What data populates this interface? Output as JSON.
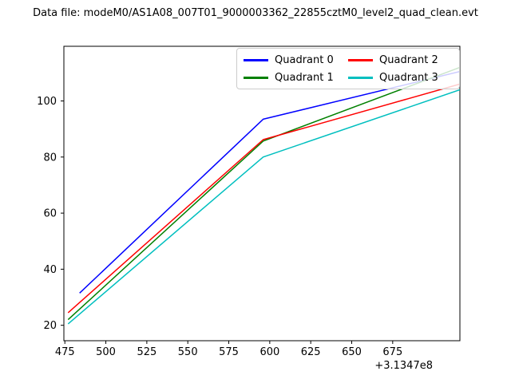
{
  "chart_data": {
    "type": "line",
    "title": "Data file: modeM0/AS1A08_007T01_9000003362_22855cztM0_level2_quad_clean.evt",
    "xlabel": "",
    "ylabel": "",
    "x_offset_label": "+3.1347e8",
    "xlim": [
      474.4,
      716.0
    ],
    "ylim": [
      14.5,
      119.5
    ],
    "x_ticks": [
      475,
      500,
      525,
      550,
      575,
      600,
      625,
      650,
      675
    ],
    "y_ticks": [
      20,
      40,
      60,
      80,
      100
    ],
    "grid": false,
    "legend": {
      "position": "upper right",
      "columns": 2
    },
    "series": [
      {
        "name": "Quadrant 0",
        "color": "#0000ff",
        "points": [
          [
            484,
            31.5
          ],
          [
            596,
            93.5
          ],
          [
            716,
            110.5
          ]
        ]
      },
      {
        "name": "Quadrant 1",
        "color": "#008000",
        "points": [
          [
            477,
            22.0
          ],
          [
            596,
            85.7
          ],
          [
            716,
            112.0
          ]
        ]
      },
      {
        "name": "Quadrant 2",
        "color": "#ff0000",
        "points": [
          [
            477,
            24.5
          ],
          [
            596,
            86.2
          ],
          [
            716,
            106.0
          ]
        ]
      },
      {
        "name": "Quadrant 3",
        "color": "#00bfbf",
        "points": [
          [
            477,
            20.5
          ],
          [
            596,
            80.0
          ],
          [
            716,
            104.0
          ]
        ]
      }
    ]
  }
}
